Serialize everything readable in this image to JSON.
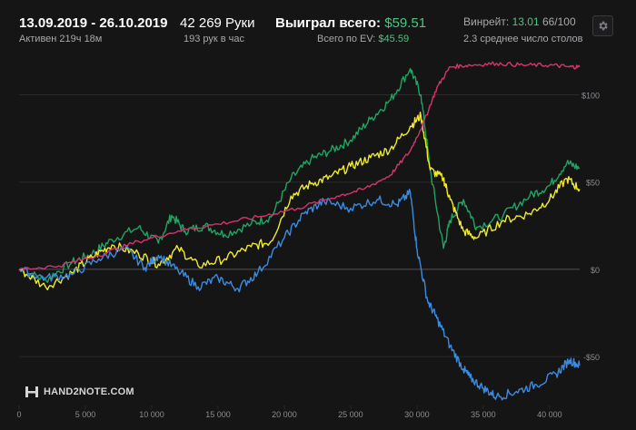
{
  "header": {
    "date_range": "13.09.2019 - 26.10.2019",
    "active_time": "Активен 219ч 18м",
    "hands": "42 269 Руки",
    "hands_per_hour": "193 рук в час",
    "won_label": "Выиграл всего:",
    "won_value": "$59.51",
    "ev_label": "Всего по EV:",
    "ev_value": "$45.59",
    "winrate_label": "Винрейт:",
    "winrate_value": "13.01",
    "winrate_rank": "66/100",
    "avg_tables": "2.3 среднее число столов",
    "settings_icon": "gear-icon"
  },
  "logo": {
    "text": "HAND2NOTE.COM",
    "icon": "h2n-logo-icon"
  },
  "colors": {
    "background": "#151516",
    "grid": "#2a2a2c",
    "zero_line": "#55555a",
    "green": "#1fa463",
    "yellow": "#f0eb2a",
    "blue": "#3b8be0",
    "pink": "#d8326e",
    "accent_green": "#46c97d"
  },
  "chart_data": {
    "type": "line",
    "x_ticks": [
      0,
      5000,
      10000,
      15000,
      20000,
      25000,
      30000,
      35000,
      40000
    ],
    "x_tick_labels": [
      "0",
      "5 000",
      "10 000",
      "15 000",
      "20 000",
      "25 000",
      "30 000",
      "35 000",
      "40 000"
    ],
    "y_ticks": [
      -50,
      0,
      50,
      100
    ],
    "y_tick_labels": [
      "-$50",
      "$0",
      "$50",
      "$100"
    ],
    "xlim": [
      0,
      42269
    ],
    "ylim": [
      -78,
      120
    ],
    "grid": true,
    "series": [
      {
        "color": "#1fa463",
        "x": [
          0,
          2000,
          4000,
          5500,
          7000,
          9000,
          10500,
          11500,
          12500,
          14000,
          15500,
          17500,
          19000,
          20500,
          22000,
          23500,
          25000,
          26500,
          28000,
          29500,
          30300,
          31000,
          32000,
          32500,
          33500,
          34500,
          36500,
          38500,
          40000,
          41300,
          42269
        ],
        "y": [
          0,
          -6,
          4,
          9,
          17,
          24,
          15,
          31,
          22,
          25,
          20,
          26,
          30,
          52,
          63,
          68,
          74,
          86,
          97,
          115,
          100,
          57,
          12,
          28,
          40,
          24,
          31,
          42,
          48,
          61,
          58
        ]
      },
      {
        "color": "#f0eb2a",
        "x": [
          0,
          2000,
          4000,
          5500,
          7000,
          9000,
          10500,
          12000,
          13500,
          15500,
          17500,
          19000,
          20500,
          22000,
          23500,
          25000,
          26500,
          28000,
          29500,
          30300,
          31000,
          32000,
          32500,
          33500,
          34500,
          36500,
          38500,
          40000,
          41300,
          42269
        ],
        "y": [
          0,
          -10,
          -2,
          7,
          14,
          9,
          3,
          12,
          2,
          6,
          13,
          16,
          42,
          49,
          53,
          59,
          64,
          69,
          82,
          88,
          57,
          52,
          40,
          22,
          18,
          28,
          32,
          40,
          52,
          46
        ]
      },
      {
        "color": "#3b8be0",
        "x": [
          0,
          2000,
          4000,
          6000,
          8000,
          9500,
          10500,
          12000,
          13500,
          15000,
          16500,
          18000,
          20000,
          21500,
          23000,
          25000,
          27000,
          28500,
          29500,
          30000,
          30800,
          31500,
          32500,
          33500,
          34000,
          35000,
          36000,
          37500,
          39000,
          40500,
          41500,
          42269
        ],
        "y": [
          0,
          -5,
          -3,
          6,
          12,
          1,
          8,
          -1,
          -10,
          -5,
          -11,
          -2,
          18,
          32,
          39,
          35,
          40,
          37,
          44,
          12,
          -18,
          -28,
          -44,
          -57,
          -62,
          -68,
          -73,
          -70,
          -66,
          -60,
          -52,
          -55
        ]
      },
      {
        "color": "#d8326e",
        "x": [
          0,
          3000,
          6000,
          9000,
          12000,
          15000,
          18000,
          21000,
          24000,
          26000,
          28000,
          29500,
          30500,
          31500,
          32500,
          34000,
          36000,
          38000,
          40000,
          41500,
          42269
        ],
        "y": [
          0,
          2,
          8,
          16,
          22,
          26,
          30,
          35,
          42,
          46,
          54,
          68,
          84,
          104,
          116,
          117,
          118,
          117,
          117,
          116,
          116
        ]
      }
    ]
  }
}
